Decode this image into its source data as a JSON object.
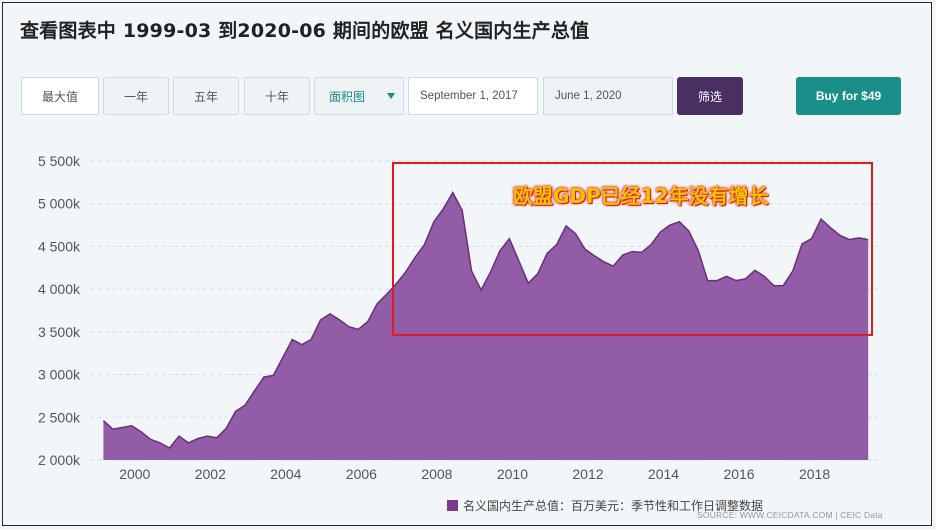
{
  "header": {
    "title": "查看图表中 1999-03 到2020-06 期间的欧盟 名义国内生产总值"
  },
  "toolbar": {
    "range_buttons": [
      "最大值",
      "一年",
      "五年",
      "十年"
    ],
    "chart_type_select": "面积图",
    "start_date": "September 1, 2017",
    "end_date": "June 1, 2020",
    "filter_label": "筛选",
    "buy_label": "Buy for $49"
  },
  "annotation": {
    "text": "欧盟GDP已经12年没有增长"
  },
  "legend": {
    "label": "名义国内生产总值：百万美元：季节性和工作日调整数据"
  },
  "source": "SOURCE: WWW.CEICDATA.COM | CEIC Data",
  "colors": {
    "area_fill": "#8a4e9e",
    "area_stroke": "#6a2e7e",
    "filter_button": "#4a2f62",
    "buy_button": "#1a8f8a",
    "annotation_border": "#e41b1b",
    "annotation_text": "#f2c400"
  },
  "chart_data": {
    "type": "area",
    "xlim": [
      1999.0,
      2019.6
    ],
    "ylim": [
      2000000,
      5500000
    ],
    "yticks": [
      2000000,
      2500000,
      3000000,
      3500000,
      4000000,
      4500000,
      5000000,
      5500000
    ],
    "ytick_labels": [
      "2 000k",
      "2 500k",
      "3 000k",
      "3 500k",
      "4 000k",
      "4 500k",
      "5 000k",
      "5 500k"
    ],
    "xticks": [
      2000,
      2002,
      2004,
      2006,
      2008,
      2010,
      2012,
      2014,
      2016,
      2018
    ],
    "xtick_labels": [
      "2000",
      "2002",
      "2004",
      "2006",
      "2008",
      "2010",
      "2012",
      "2014",
      "2016",
      "2018"
    ],
    "grid": true,
    "series": [
      {
        "name": "名义国内生产总值：百万美元：季节性和工作日调整数据",
        "x": [
          1999.17,
          1999.42,
          1999.67,
          1999.92,
          2000.17,
          2000.42,
          2000.67,
          2000.92,
          2001.17,
          2001.42,
          2001.67,
          2001.92,
          2002.17,
          2002.42,
          2002.67,
          2002.92,
          2003.17,
          2003.42,
          2003.67,
          2003.92,
          2004.17,
          2004.42,
          2004.67,
          2004.92,
          2005.17,
          2005.42,
          2005.67,
          2005.92,
          2006.17,
          2006.42,
          2006.67,
          2006.92,
          2007.17,
          2007.42,
          2007.67,
          2007.92,
          2008.17,
          2008.42,
          2008.67,
          2008.92,
          2009.17,
          2009.42,
          2009.67,
          2009.92,
          2010.17,
          2010.42,
          2010.67,
          2010.92,
          2011.17,
          2011.42,
          2011.67,
          2011.92,
          2012.17,
          2012.42,
          2012.67,
          2012.92,
          2013.17,
          2013.42,
          2013.67,
          2013.92,
          2014.17,
          2014.42,
          2014.67,
          2014.92,
          2015.17,
          2015.42,
          2015.67,
          2015.92,
          2016.17,
          2016.42,
          2016.67,
          2016.92,
          2017.17,
          2017.42,
          2017.67,
          2017.92,
          2018.17,
          2018.42,
          2018.67,
          2018.92,
          2019.17,
          2019.42
        ],
        "values": [
          2460000,
          2360000,
          2380000,
          2400000,
          2330000,
          2240000,
          2200000,
          2140000,
          2280000,
          2200000,
          2250000,
          2280000,
          2260000,
          2370000,
          2570000,
          2640000,
          2810000,
          2970000,
          2990000,
          3200000,
          3410000,
          3350000,
          3410000,
          3640000,
          3710000,
          3640000,
          3560000,
          3530000,
          3620000,
          3830000,
          3940000,
          4060000,
          4200000,
          4370000,
          4520000,
          4790000,
          4940000,
          5130000,
          4920000,
          4210000,
          3990000,
          4200000,
          4450000,
          4590000,
          4330000,
          4070000,
          4180000,
          4420000,
          4520000,
          4740000,
          4650000,
          4470000,
          4390000,
          4320000,
          4270000,
          4400000,
          4440000,
          4430000,
          4520000,
          4670000,
          4750000,
          4790000,
          4680000,
          4450000,
          4100000,
          4100000,
          4150000,
          4100000,
          4120000,
          4220000,
          4150000,
          4040000,
          4040000,
          4210000,
          4530000,
          4590000,
          4820000,
          4720000,
          4630000,
          4580000,
          4600000,
          4580000
        ]
      }
    ]
  }
}
